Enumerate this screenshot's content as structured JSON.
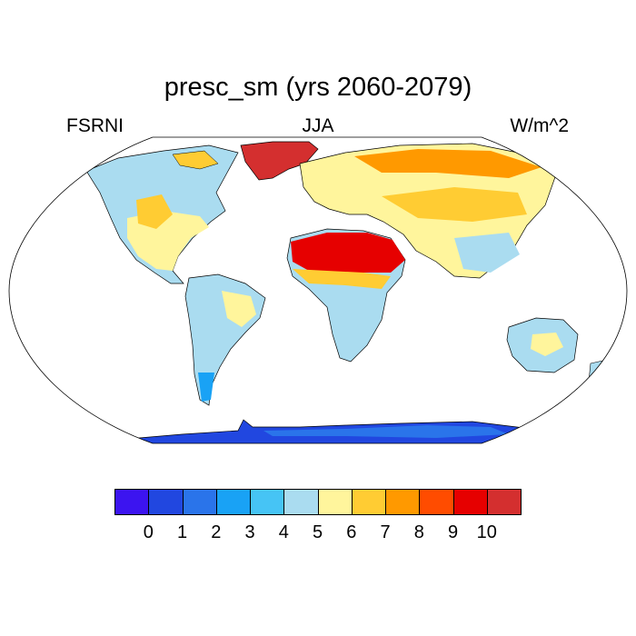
{
  "title": "presc_sm (yrs 2060-2079)",
  "left_string": "FSRNI",
  "center_string": "JJA",
  "right_string": "W/m^2",
  "colorbar": {
    "labels": [
      "0",
      "1",
      "2",
      "3",
      "4",
      "5",
      "6",
      "7",
      "8",
      "9",
      "10"
    ],
    "colors": [
      "#3c14f0",
      "#2147e0",
      "#2a74ea",
      "#19a2f5",
      "#46c4f5",
      "#aadcf0",
      "#fff59c",
      "#ffcc33",
      "#ff9900",
      "#ff4c00",
      "#e60000",
      "#d42f2f"
    ]
  },
  "map": {
    "projection": "Robinson",
    "land_classes": {
      "greenland": "#d42f2f",
      "antarctica": "#2147e0",
      "north_america": "#aadcf0",
      "south_america": "#aadcf0",
      "europe_asia": "#fff59c",
      "africa": "#aadcf0",
      "sahara_arabia": "#e60000",
      "australia": "#aadcf0"
    }
  }
}
